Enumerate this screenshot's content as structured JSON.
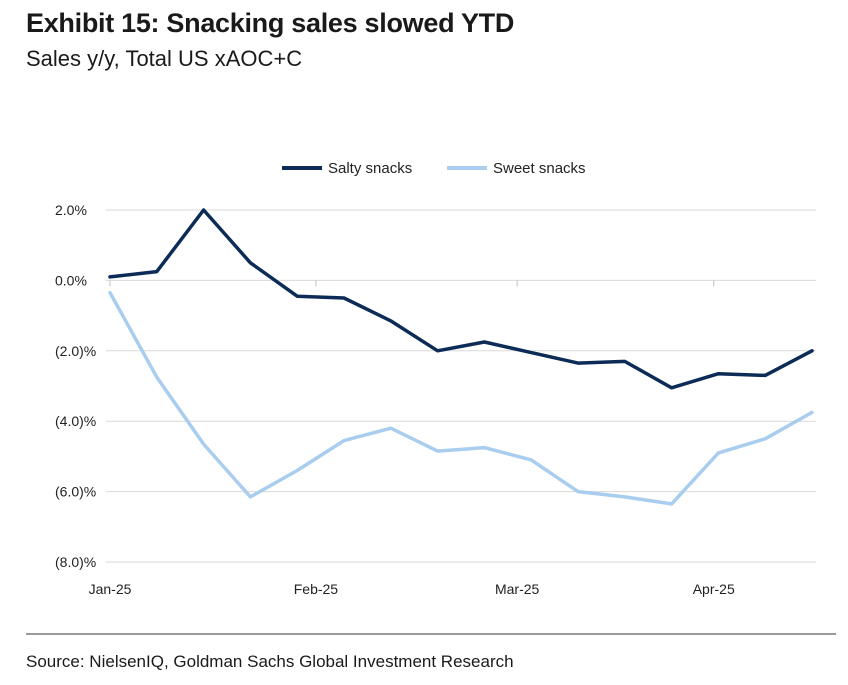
{
  "header": {
    "title": "Exhibit 15: Snacking sales slowed YTD",
    "subtitle": "Sales y/y, Total US xAOC+C"
  },
  "footer": {
    "source": "Source: NielsenIQ, Goldman Sachs Global Investment Research"
  },
  "colors": {
    "salty": "#0c2c57",
    "sweet": "#a8cdee",
    "grid": "#d9d9d9"
  },
  "chart_data": {
    "type": "line",
    "title": "Exhibit 15: Snacking sales slowed YTD",
    "subtitle": "Sales y/y, Total US xAOC+C",
    "xlabel": "",
    "ylabel": "",
    "ylim": [
      -8,
      2
    ],
    "y_ticks": [
      2,
      0,
      -2,
      -4,
      -6,
      -8
    ],
    "y_tick_labels": [
      "2.0%",
      "0.0%",
      "(2.0)%",
      "(4.0)%",
      "(6.0)%",
      "(8.0)%"
    ],
    "x_count": 16,
    "x_ticks": [
      {
        "index": 0,
        "label": "Jan-25"
      },
      {
        "index": 4.4,
        "label": "Feb-25"
      },
      {
        "index": 8.7,
        "label": "Mar-25"
      },
      {
        "index": 12.9,
        "label": "Apr-25"
      }
    ],
    "grid": "horizontal",
    "legend_position": "top-center",
    "series": [
      {
        "name": "Salty snacks",
        "color": "#0c2c57",
        "values": [
          0.1,
          0.25,
          2.0,
          0.5,
          -0.45,
          -0.5,
          -1.15,
          -2.0,
          -1.75,
          -2.05,
          -2.35,
          -2.3,
          -3.05,
          -2.65,
          -2.7,
          -2.0
        ]
      },
      {
        "name": "Sweet snacks",
        "color": "#a8cdee",
        "values": [
          -0.35,
          -2.75,
          -4.65,
          -6.15,
          -5.4,
          -4.55,
          -4.2,
          -4.85,
          -4.75,
          -5.1,
          -6.0,
          -6.15,
          -6.35,
          -4.9,
          -4.5,
          -3.75
        ]
      }
    ]
  }
}
